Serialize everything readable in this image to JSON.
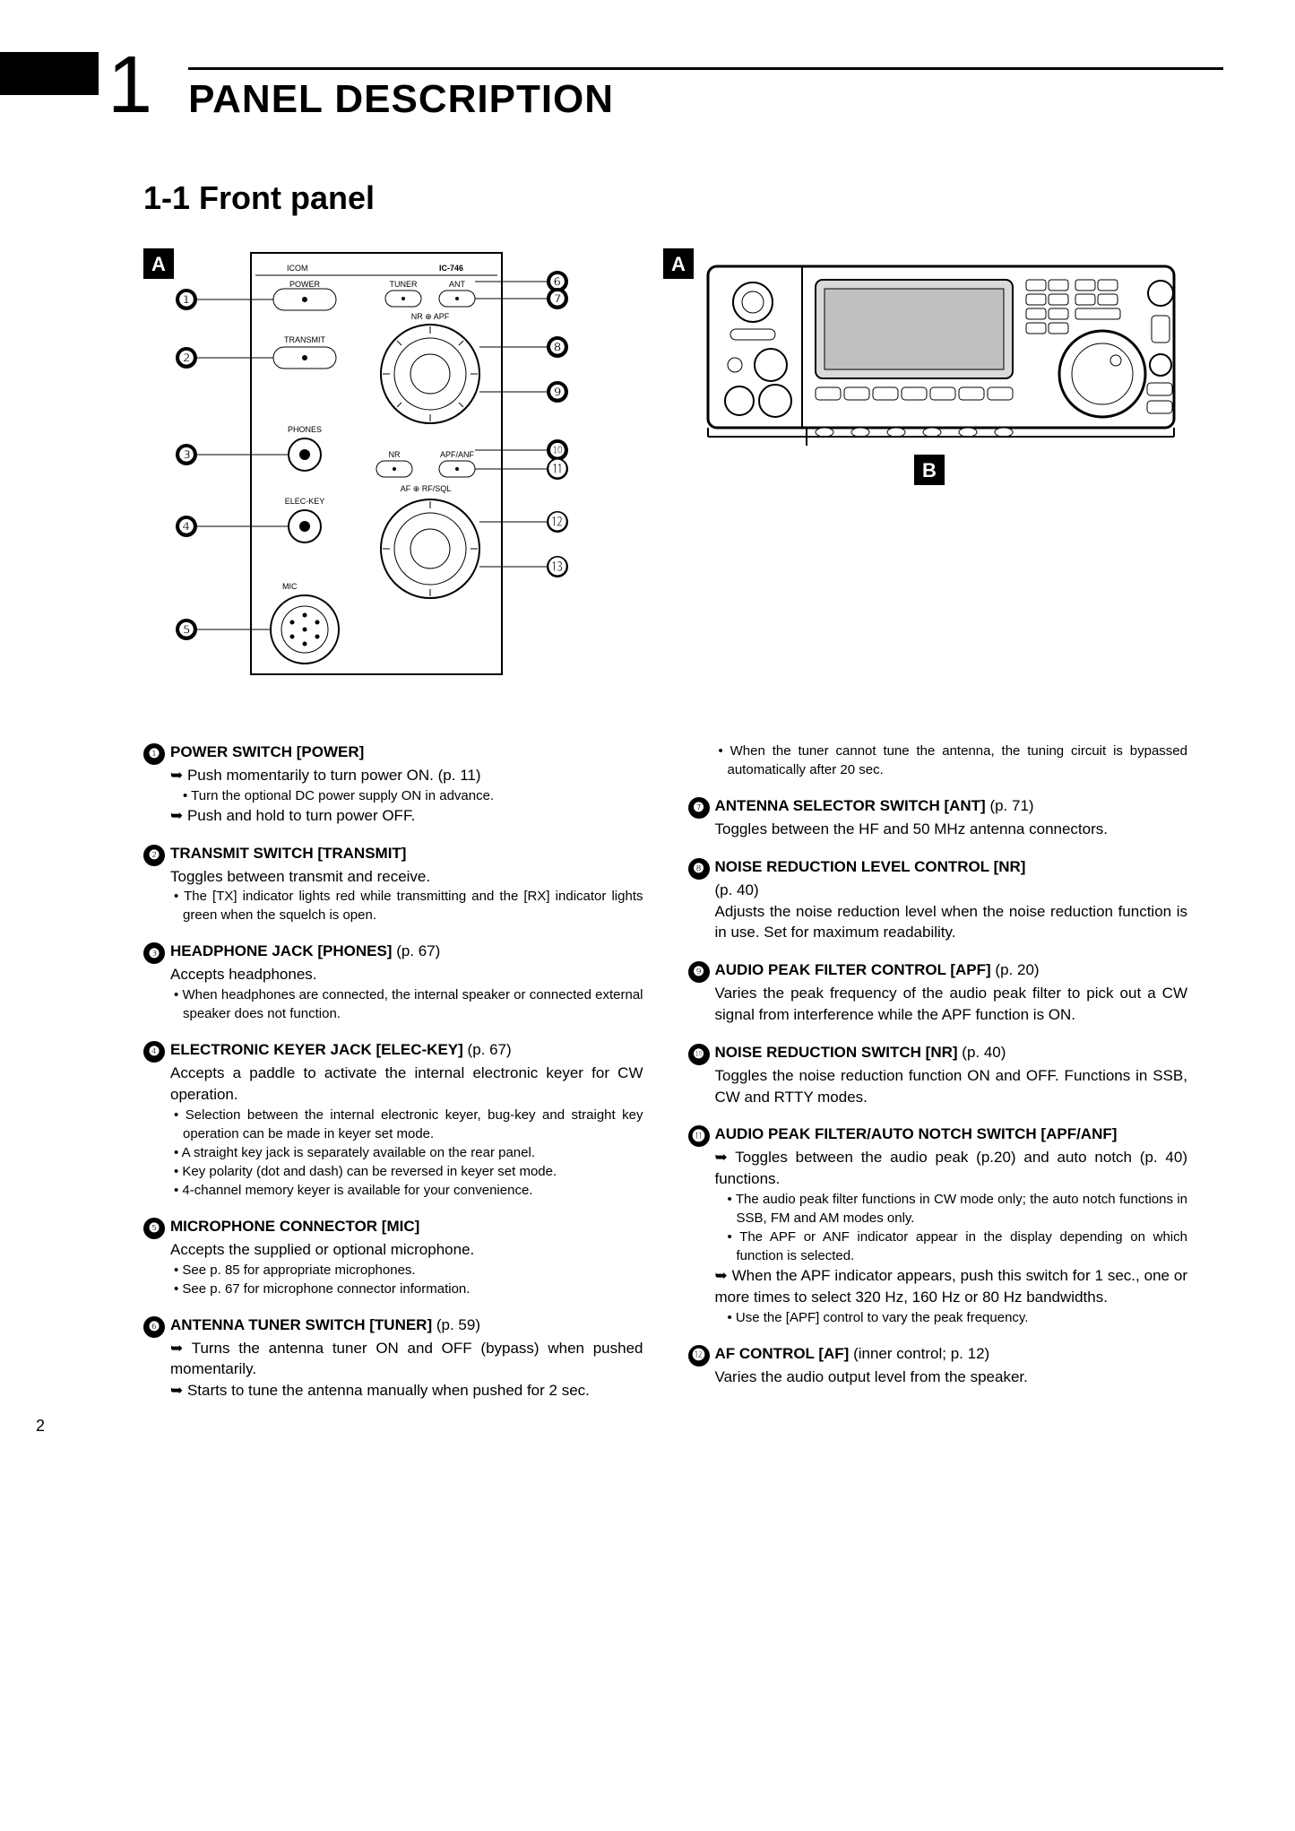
{
  "chapter": {
    "number": "1",
    "title": "PANEL DESCRIPTION"
  },
  "section": {
    "title": "1-1 Front panel"
  },
  "page_number": "2",
  "figure_left": {
    "badge": "A",
    "brand": "ICOM",
    "model": "IC-746",
    "labels": {
      "power": "POWER",
      "transmit": "TRANSMIT",
      "phones": "PHONES",
      "eleckey": "ELEC-KEY",
      "mic": "MIC",
      "tuner": "TUNER",
      "ant": "ANT",
      "nr_apf_top": "NR ⊕ APF",
      "nr": "NR",
      "apf_anf": "APF/ANF",
      "af_rf": "AF ⊕ RF/SQL"
    },
    "callouts_left": [
      "❶",
      "❷",
      "❸",
      "❹",
      "❺"
    ],
    "callouts_right": [
      "❻",
      "❼",
      "❽",
      "❾",
      "❿",
      "⓫",
      "⓬",
      "⓭"
    ]
  },
  "figure_right": {
    "badge_a": "A",
    "badge_b": "B"
  },
  "left_items": [
    {
      "n": "❶",
      "title": "POWER SWITCH [POWER]",
      "lines": [
        {
          "t": "arrow",
          "text": "Push momentarily to turn power ON. (p. 11)"
        },
        {
          "t": "sub",
          "text": "Turn the optional DC power supply ON in advance."
        },
        {
          "t": "arrow",
          "text": "Push and hold to turn power OFF."
        }
      ]
    },
    {
      "n": "❷",
      "title": "TRANSMIT SWITCH [TRANSMIT]",
      "lines": [
        {
          "t": "plain",
          "text": "Toggles between transmit and receive."
        },
        {
          "t": "bullet",
          "text": "The [TX] indicator lights red while transmitting and the [RX] indicator lights green when the squelch is open."
        }
      ]
    },
    {
      "n": "❸",
      "title": "HEADPHONE JACK [PHONES]",
      "ref": "(p. 67)",
      "lines": [
        {
          "t": "plain",
          "text": "Accepts headphones."
        },
        {
          "t": "bullet",
          "text": "When headphones are connected, the internal speaker or connected external speaker does not function."
        }
      ]
    },
    {
      "n": "❹",
      "title": "ELECTRONIC KEYER JACK [ELEC-KEY]",
      "ref": "(p. 67)",
      "lines": [
        {
          "t": "plain",
          "text": "Accepts a paddle to activate the internal electronic keyer for CW operation."
        },
        {
          "t": "bullet",
          "text": "Selection between the internal electronic keyer, bug-key and straight key operation can be made in keyer set mode."
        },
        {
          "t": "bullet",
          "text": "A straight key jack is separately available on the rear panel."
        },
        {
          "t": "bullet",
          "text": "Key polarity (dot and dash) can be reversed in keyer set mode."
        },
        {
          "t": "bullet",
          "text": "4-channel memory keyer is available for your convenience."
        }
      ]
    },
    {
      "n": "❺",
      "title": "MICROPHONE CONNECTOR [MIC]",
      "lines": [
        {
          "t": "plain",
          "text": "Accepts the supplied or optional microphone."
        },
        {
          "t": "bullet",
          "text": "See p. 85 for appropriate microphones."
        },
        {
          "t": "bullet",
          "text": "See p. 67 for microphone connector information."
        }
      ]
    },
    {
      "n": "❻",
      "title": "ANTENNA TUNER SWITCH [TUNER]",
      "ref": "(p. 59)",
      "lines": [
        {
          "t": "arrow",
          "text": "Turns the antenna tuner ON and OFF (bypass) when pushed momentarily."
        },
        {
          "t": "arrow",
          "text": "Starts to tune the antenna manually when pushed for 2 sec."
        }
      ]
    }
  ],
  "right_items": [
    {
      "pre_bullets": [
        "When the tuner cannot tune the antenna, the tuning circuit is bypassed automatically after 20 sec."
      ]
    },
    {
      "n": "❼",
      "title": "ANTENNA SELECTOR SWITCH [ANT]",
      "ref": "(p. 71)",
      "lines": [
        {
          "t": "plain",
          "text": "Toggles between the HF and 50 MHz antenna connectors."
        }
      ]
    },
    {
      "n": "❽",
      "title": "NOISE REDUCTION LEVEL CONTROL [NR]",
      "ref_below": "(p. 40)",
      "lines": [
        {
          "t": "plain",
          "text": "Adjusts the noise reduction level when the noise reduction function is in use. Set for maximum readability."
        }
      ]
    },
    {
      "n": "❾",
      "title": "AUDIO PEAK FILTER CONTROL [APF]",
      "ref": "(p. 20)",
      "lines": [
        {
          "t": "plain",
          "text": "Varies the peak frequency of the audio peak filter to pick out a CW signal from interference while the APF function is ON."
        }
      ]
    },
    {
      "n": "❿",
      "title": "NOISE REDUCTION SWITCH [NR]",
      "ref": "(p. 40)",
      "lines": [
        {
          "t": "plain",
          "text": "Toggles the noise reduction function ON and OFF. Functions in SSB, CW and RTTY modes."
        }
      ]
    },
    {
      "n": "⓫",
      "title": "AUDIO PEAK FILTER/AUTO NOTCH SWITCH [APF/ANF]",
      "lines": [
        {
          "t": "arrow",
          "text": "Toggles between the audio peak (p.20) and auto notch (p. 40) functions."
        },
        {
          "t": "sub",
          "text": "The audio peak filter functions in CW mode only; the auto notch functions in SSB, FM and AM modes only."
        },
        {
          "t": "sub",
          "text": "The APF or ANF indicator appear in the display depending on which function is selected."
        },
        {
          "t": "arrow",
          "text": "When the APF indicator appears, push this switch for 1 sec., one or more times to select 320 Hz, 160 Hz or 80 Hz bandwidths."
        },
        {
          "t": "sub",
          "text": "Use the [APF] control to vary the peak frequency."
        }
      ]
    },
    {
      "n": "⓬",
      "title": "AF CONTROL [AF]",
      "ref": "(inner control; p. 12)",
      "lines": [
        {
          "t": "plain",
          "text": "Varies the audio output level from the speaker."
        }
      ]
    }
  ]
}
